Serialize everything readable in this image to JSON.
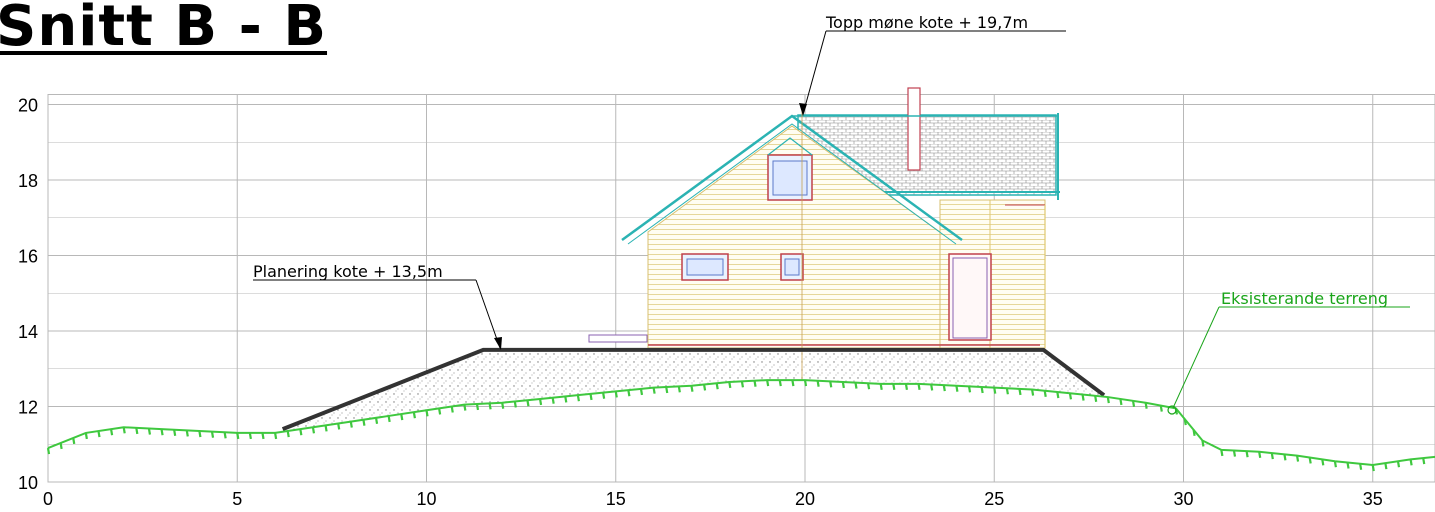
{
  "title": "Snitt B - B",
  "annotations": {
    "ridge": "Topp møne kote + 19,7m",
    "grading": "Planering kote + 13,5m",
    "terrain": "Eksisterande terreng"
  },
  "colors": {
    "grid": "#b8b8b8",
    "terrain": "#3fc83f",
    "terrain_label": "#1aa51a",
    "platform": "#333333",
    "roof": "#2bb3b3",
    "wall": "#e8d8a0",
    "window": "#c0404a",
    "chimney": "#c04050"
  },
  "axes": {
    "x_ticks": [
      "0",
      "5",
      "10",
      "15",
      "20",
      "25",
      "30",
      "35"
    ],
    "y_ticks": [
      "10",
      "12",
      "14",
      "16",
      "18",
      "20"
    ]
  },
  "chart_data": {
    "type": "line",
    "xlim": [
      0,
      37
    ],
    "ylim": [
      10,
      20
    ],
    "grid": true,
    "series": [
      {
        "name": "Eksisterande terreng",
        "x": [
          0,
          1,
          2,
          3,
          4,
          5,
          6,
          7,
          8,
          9,
          10,
          11,
          12,
          13,
          14,
          15,
          16,
          17,
          18,
          19,
          20,
          21,
          22,
          23,
          24,
          25,
          26,
          27,
          28,
          29,
          29.8,
          30.5,
          31,
          32,
          33,
          34,
          35,
          36,
          37
        ],
        "y": [
          10.9,
          11.3,
          11.45,
          11.4,
          11.35,
          11.3,
          11.3,
          11.45,
          11.6,
          11.75,
          11.9,
          12.05,
          12.1,
          12.2,
          12.3,
          12.4,
          12.5,
          12.55,
          12.65,
          12.7,
          12.7,
          12.65,
          12.6,
          12.6,
          12.55,
          12.5,
          12.45,
          12.35,
          12.25,
          12.1,
          11.95,
          11.1,
          10.85,
          10.8,
          10.7,
          10.55,
          10.45,
          10.6,
          10.7
        ]
      },
      {
        "name": "Planering",
        "x": [
          6.2,
          11.5,
          26.3,
          27.9
        ],
        "y": [
          11.4,
          13.5,
          13.5,
          12.3
        ]
      }
    ]
  }
}
